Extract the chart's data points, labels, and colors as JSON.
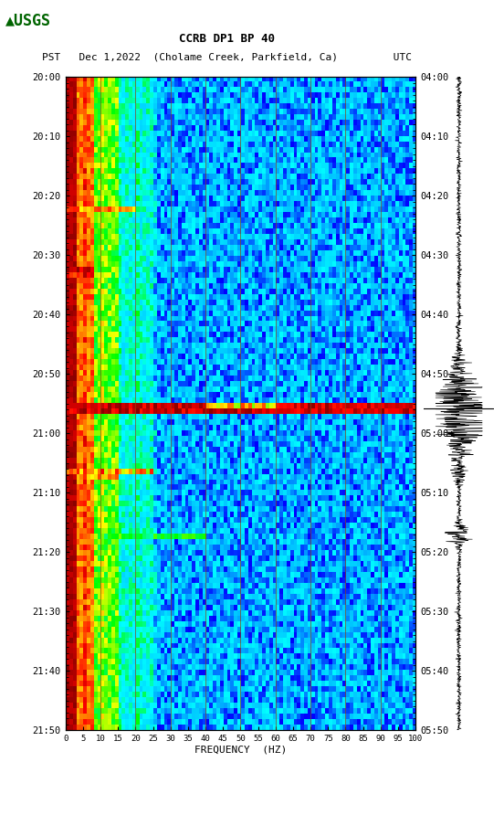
{
  "title_line1": "CCRB DP1 BP 40",
  "title_line2": "PST   Dec 1,2022  (Cholame Creek, Parkfield, Ca)         UTC",
  "left_times": [
    "20:00",
    "20:10",
    "20:20",
    "20:30",
    "20:40",
    "20:50",
    "21:00",
    "21:10",
    "21:20",
    "21:30",
    "21:40",
    "21:50"
  ],
  "right_times": [
    "04:00",
    "04:10",
    "04:20",
    "04:30",
    "04:40",
    "04:50",
    "05:00",
    "05:10",
    "05:20",
    "05:30",
    "05:40",
    "05:50"
  ],
  "freq_ticks": [
    0,
    5,
    10,
    15,
    20,
    25,
    30,
    35,
    40,
    45,
    50,
    55,
    60,
    65,
    70,
    75,
    80,
    85,
    90,
    95,
    100
  ],
  "freq_label": "FREQUENCY  (HZ)",
  "n_time": 120,
  "n_freq": 100,
  "bg_color": "#ffffff",
  "vline_color": "#8B4513",
  "vline_freqs": [
    10,
    20,
    30,
    40,
    50,
    60,
    70,
    80,
    90
  ],
  "earthquake_time_idx": 61,
  "earthquake_freq_band": [
    0,
    100
  ],
  "seismic_line_time_idx": 61,
  "fig_width": 5.52,
  "fig_height": 8.92,
  "usgs_green": "#006400"
}
